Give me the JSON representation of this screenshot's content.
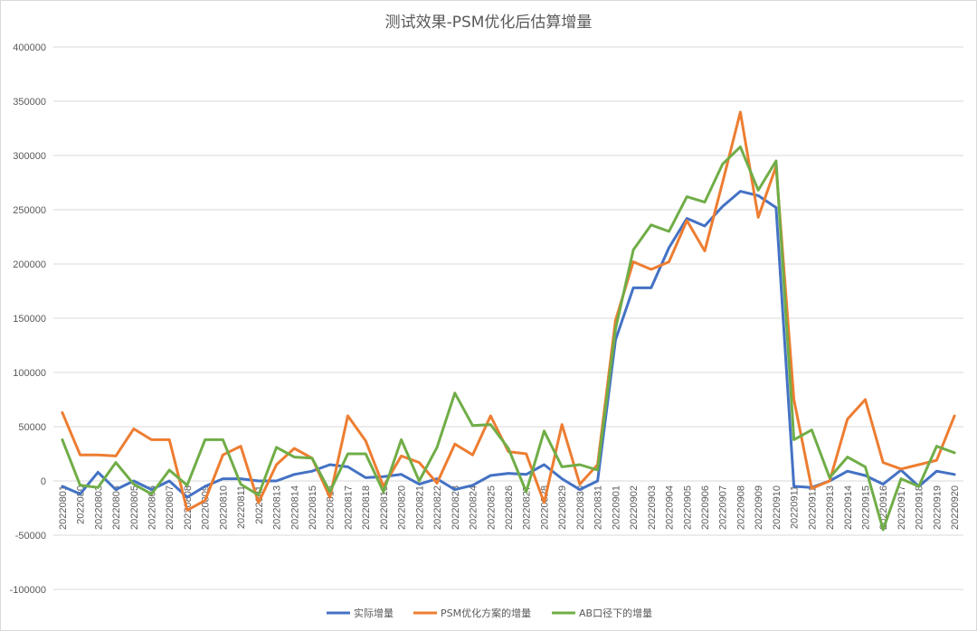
{
  "chart_data": {
    "type": "line",
    "title": "测试效果-PSM优化后估算增量",
    "xlabel": "",
    "ylabel": "",
    "ylim": [
      -100000,
      400000
    ],
    "yticks": [
      400000,
      350000,
      300000,
      250000,
      200000,
      150000,
      100000,
      50000,
      0,
      -50000,
      -100000
    ],
    "grid": "horizontal",
    "legend_position": "bottom",
    "categories": [
      "20220801",
      "20220802",
      "20220803",
      "20220804",
      "20220805",
      "20220806",
      "20220807",
      "20220808",
      "20220809",
      "20220810",
      "20220811",
      "20220812",
      "20220813",
      "20220814",
      "20220815",
      "20220816",
      "20220817",
      "20220818",
      "20220819",
      "20220820",
      "20220821",
      "20220822",
      "20220823",
      "20220824",
      "20220825",
      "20220826",
      "20220827",
      "20220828",
      "20220829",
      "20220830",
      "20220831",
      "20220901",
      "20220902",
      "20220903",
      "20220904",
      "20220905",
      "20220906",
      "20220907",
      "20220908",
      "20220909",
      "20220910",
      "20220911",
      "20220912",
      "20220913",
      "20220914",
      "20220915",
      "20220916",
      "20220917",
      "20220918",
      "20220919",
      "20220920"
    ],
    "tick_labels": [
      "2022080​1",
      "2022080",
      "2022080​3",
      "2022080​4",
      "2022080​5",
      "2022080​6",
      "2022080​7",
      "2022080​8",
      "2022080​9",
      "2022081​0",
      "2022081​1",
      "2022081",
      "2022081​3",
      "2022081​4",
      "2022081​5",
      "2022081​6",
      "2022081​7",
      "2022081​8",
      "2022081​9",
      "2022082​0",
      "2022082​1",
      "2022082​2",
      "2022082​3",
      "2022082​4",
      "2022082​5",
      "2022082​6",
      "2022082​7",
      "2022082​8",
      "2022082​9",
      "2022083​0",
      "2022083​1",
      "2022090​1",
      "2022090​2",
      "2022090​3",
      "2022090​4",
      "2022090​5",
      "2022090​6",
      "2022090​7",
      "2022090​8",
      "2022090​9",
      "2022091​0",
      "2022091​1",
      "2022091​2",
      "2022091​3",
      "2022091​4",
      "2022091​5",
      "20220916",
      "2022091​7",
      "2022091​8",
      "2022091​9",
      "2022092​0"
    ],
    "series": [
      {
        "name": "实际增量",
        "color": "#4472c4",
        "values": [
          -5000,
          -12000,
          8000,
          -8000,
          0,
          -8000,
          0,
          -15000,
          -5000,
          2000,
          2000,
          0,
          0,
          6000,
          9000,
          15000,
          13000,
          3000,
          4000,
          6000,
          -3000,
          2000,
          -8000,
          -4000,
          5000,
          7000,
          6000,
          15000,
          2000,
          -8000,
          0,
          130000,
          178000,
          178000,
          215000,
          242000,
          235000,
          253000,
          267000,
          263000,
          252000,
          -5000,
          -6000,
          0,
          9000,
          5000,
          -3000,
          10000,
          -5000,
          9000,
          6000
        ]
      },
      {
        "name": "PSM优化方案的增量",
        "color": "#ed7d31",
        "values": [
          63000,
          24000,
          24000,
          23000,
          48000,
          38000,
          38000,
          -27000,
          -18000,
          24000,
          32000,
          -20000,
          15000,
          30000,
          21000,
          -15000,
          60000,
          37000,
          -5000,
          23000,
          17000,
          -2000,
          34000,
          24000,
          60000,
          27000,
          25000,
          -20000,
          52000,
          -3000,
          15000,
          148000,
          202000,
          195000,
          202000,
          240000,
          212000,
          275000,
          340000,
          243000,
          290000,
          75000,
          -7000,
          0,
          57000,
          75000,
          17000,
          11000,
          15000,
          19000,
          60000
        ]
      },
      {
        "name": "AB口径下的增量",
        "color": "#70ad47",
        "values": [
          38000,
          -4000,
          -6000,
          17000,
          -3000,
          -12000,
          10000,
          -4000,
          38000,
          38000,
          -3000,
          -13000,
          31000,
          22000,
          21000,
          -10000,
          25000,
          25000,
          -10000,
          38000,
          0,
          31000,
          81000,
          51000,
          52000,
          30000,
          -10000,
          46000,
          13000,
          15000,
          10000,
          140000,
          213000,
          236000,
          230000,
          262000,
          257000,
          292000,
          308000,
          268000,
          295000,
          38000,
          47000,
          3000,
          22000,
          13000,
          -45000,
          2000,
          -5000,
          32000,
          26000
        ]
      }
    ]
  }
}
